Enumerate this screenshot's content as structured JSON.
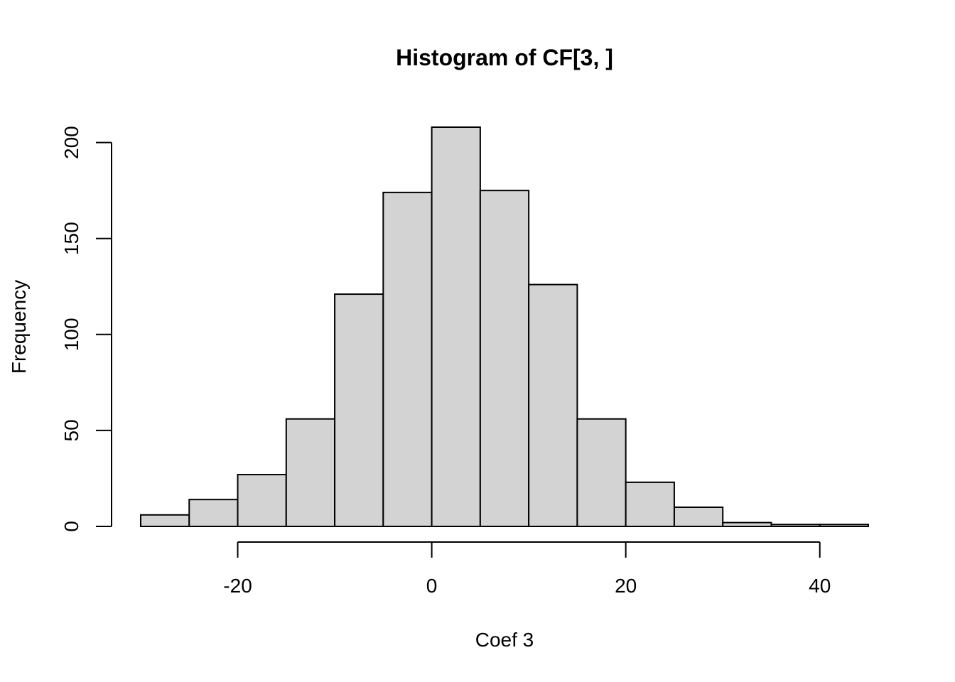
{
  "chart_data": {
    "type": "bar",
    "title": "Histogram of CF[3, ]",
    "xlabel": "Coef 3",
    "ylabel": "Frequency",
    "bin_edges": [
      -30,
      -25,
      -20,
      -15,
      -10,
      -5,
      0,
      5,
      10,
      15,
      20,
      25,
      30,
      35,
      40,
      45
    ],
    "values": [
      6,
      14,
      27,
      56,
      121,
      174,
      208,
      175,
      126,
      56,
      23,
      10,
      2,
      1,
      1
    ],
    "xlim": [
      -30,
      45
    ],
    "ylim": [
      0,
      208
    ],
    "x_ticks": [
      -20,
      0,
      20,
      40
    ],
    "x_tick_labels": [
      "-20",
      "0",
      "20",
      "40"
    ],
    "y_ticks": [
      0,
      50,
      100,
      150,
      200
    ],
    "y_tick_labels": [
      "0",
      "50",
      "100",
      "150",
      "200"
    ],
    "bar_color": "#d3d3d3",
    "border_color": "#000000",
    "grid": false
  }
}
